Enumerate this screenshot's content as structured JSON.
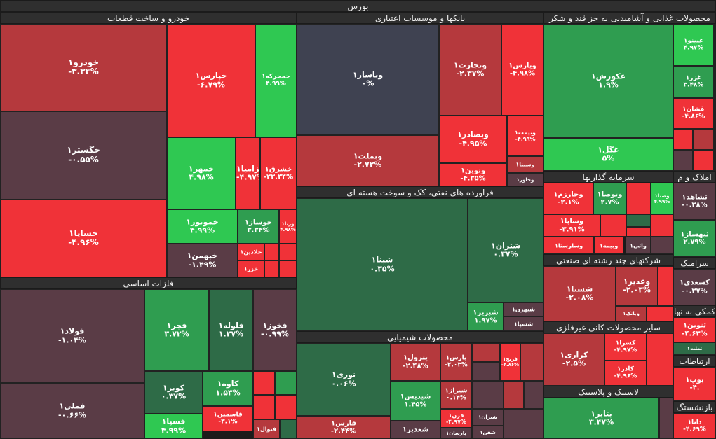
{
  "title": "بورس",
  "chart_data": {
    "type": "treemap",
    "unit": "%",
    "colors": {
      "strong_green": "#2fc852",
      "green": "#2f9d50",
      "dark_green": "#2e6b47",
      "neutral": "#3f4251",
      "dark_red": "#5a3c46",
      "red": "#b5393d",
      "strong_red": "#f03238"
    },
    "sectors": [
      {
        "name": "خودرو و ساخت قطعات"
      },
      {
        "name": "بانکها و موسسات اعتباری"
      },
      {
        "name": "محصولات غذایی و آشامیدنی به جز قند و شکر"
      },
      {
        "name": "فلزات اساسی"
      },
      {
        "name": "فراورده های نفتی، کک و سوخت هسته ای"
      },
      {
        "name": "سرمایه گذاریها"
      },
      {
        "name": "املاک و م"
      },
      {
        "name": "شرکتهای چند رشته ای صنعتی"
      },
      {
        "name": "سرامیک"
      },
      {
        "name": "محصولات شیمیایی"
      },
      {
        "name": "سایر محصولات کانی غیرفلزی"
      },
      {
        "name": "کمکی به نها"
      },
      {
        "name": "ارتباطات"
      },
      {
        "name": "لاستیک و پلاستیک"
      },
      {
        "name": "بازنشستگ"
      }
    ],
    "tiles": [
      {
        "name": "خودرو۱",
        "pct": "-۳.۳۴%",
        "value": -3.34,
        "sector": "خودرو و ساخت قطعات"
      },
      {
        "name": "خگستر۱",
        "pct": "-۰.۵۵%",
        "value": -0.55,
        "sector": "خودرو و ساخت قطعات"
      },
      {
        "name": "خساپا۱",
        "pct": "-۴.۹۶%",
        "value": -4.96,
        "sector": "خودرو و ساخت قطعات"
      },
      {
        "name": "خپارس۱",
        "pct": "-۶.۷۹%",
        "value": -6.79,
        "sector": "خودرو و ساخت قطعات"
      },
      {
        "name": "خمحرکه۱",
        "pct": "۴.۹۹%",
        "value": 4.99,
        "sector": "خودرو و ساخت قطعات"
      },
      {
        "name": "خمهر۱",
        "pct": "۴.۹۸%",
        "value": 4.98,
        "sector": "خودرو و ساخت قطعات"
      },
      {
        "name": "خزامیا۱",
        "pct": "-۴.۹۷%",
        "value": -4.97,
        "sector": "خودرو و ساخت قطعات"
      },
      {
        "name": "خشرق۱",
        "pct": "-۲۳.۳۴%",
        "value": -23.34,
        "sector": "خودرو و ساخت قطعات"
      },
      {
        "name": "خموتور۱",
        "pct": "۴.۹۹%",
        "value": 4.99,
        "sector": "خودرو و ساخت قطعات"
      },
      {
        "name": "خوساز۱",
        "pct": "۳.۳۴%",
        "value": 3.34,
        "sector": "خودرو و ساخت قطعات"
      },
      {
        "name": "ورنا۱",
        "pct": "۴.۹۸%",
        "value": 4.98,
        "sector": "خودرو و ساخت قطعات"
      },
      {
        "name": "خبهمن۱",
        "pct": "-۱.۴۹%",
        "value": -1.49,
        "sector": "خودرو و ساخت قطعات"
      },
      {
        "name": "خلاذین۱",
        "sector": "خودرو و ساخت قطعات"
      },
      {
        "name": "خزر۱",
        "sector": "خودرو و ساخت قطعات"
      },
      {
        "name": "وپاسار۱",
        "pct": "۰%",
        "value": 0,
        "sector": "بانکها و موسسات اعتباری"
      },
      {
        "name": "وتجارت۱",
        "pct": "-۲.۳۷%",
        "value": -2.37,
        "sector": "بانکها و موسسات اعتباری"
      },
      {
        "name": "وپارس۱",
        "pct": "-۴.۹۸%",
        "value": -4.98,
        "sector": "بانکها و موسسات اعتباری"
      },
      {
        "name": "وبصادر۱",
        "pct": "-۴.۹۵%",
        "value": -4.95,
        "sector": "بانکها و موسسات اعتباری"
      },
      {
        "name": "وبیمت۱",
        "pct": "-۴.۹۹%",
        "value": -4.99,
        "sector": "بانکها و موسسات اعتباری"
      },
      {
        "name": "وبملت۱",
        "pct": "-۲.۷۲%",
        "value": -2.72,
        "sector": "بانکها و موسسات اعتباری"
      },
      {
        "name": "ونوین۱",
        "pct": "-۴.۳۵%",
        "value": -4.35,
        "sector": "بانکها و موسسات اعتباری"
      },
      {
        "name": "وسینا۱",
        "sector": "بانکها و موسسات اعتباری"
      },
      {
        "name": "وخاور۱",
        "sector": "بانکها و موسسات اعتباری"
      },
      {
        "name": "غکورش۱",
        "pct": "۱.۹%",
        "value": 1.9,
        "sector": "محصولات غذایی و آشامیدنی به جز قند و شکر"
      },
      {
        "name": "غگل۱",
        "pct": "۵%",
        "value": 5,
        "sector": "محصولات غذایی و آشامیدنی به جز قند و شکر"
      },
      {
        "name": "غبینو۱",
        "pct": "۴.۹۷%",
        "value": 4.97,
        "sector": "محصولات غذایی و آشامیدنی به جز قند و شکر"
      },
      {
        "name": "غزر۱",
        "pct": "۳.۴۸%",
        "value": 3.48,
        "sector": "محصولات غذایی و آشامیدنی به جز قند و شکر"
      },
      {
        "name": "غشان۱",
        "pct": "-۴.۸۶%",
        "value": -4.86,
        "sector": "محصولات غذایی و آشامیدنی به جز قند و شکر"
      },
      {
        "name": "فولاد۱",
        "pct": "-۱.۰۴%",
        "value": -1.04,
        "sector": "فلزات اساسی"
      },
      {
        "name": "فملی۱",
        "pct": "-۰.۶۶%",
        "value": -0.66,
        "sector": "فلزات اساسی"
      },
      {
        "name": "فجر۱",
        "pct": "۳.۷۲%",
        "value": 3.72,
        "sector": "فلزات اساسی"
      },
      {
        "name": "فلوله۱",
        "pct": "۱.۲۷%",
        "value": 1.27,
        "sector": "فلزات اساسی"
      },
      {
        "name": "فخوز۱",
        "pct": "-۰.۹۹%",
        "value": -0.99,
        "sector": "فلزات اساسی"
      },
      {
        "name": "کویر۱",
        "pct": "۰.۳۷%",
        "value": 0.37,
        "sector": "فلزات اساسی"
      },
      {
        "name": "کاوه۱",
        "pct": "۱.۵۳%",
        "value": 1.53,
        "sector": "فلزات اساسی"
      },
      {
        "name": "فاسمین۱",
        "pct": "-۳.۱%",
        "value": -3.1,
        "sector": "فلزات اساسی"
      },
      {
        "name": "فسپا۱",
        "pct": "۴.۹۹%",
        "value": 4.99,
        "sector": "فلزات اساسی"
      },
      {
        "name": "فنوال۱",
        "sector": "فلزات اساسی"
      },
      {
        "name": "شپنا۱",
        "pct": "۰.۳۵%",
        "value": 0.35,
        "sector": "فراورده های نفتی، کک و سوخت هسته ای"
      },
      {
        "name": "شتران۱",
        "pct": "۰.۳۷%",
        "value": 0.37,
        "sector": "فراورده های نفتی، کک و سوخت هسته ای"
      },
      {
        "name": "شبریز۱",
        "pct": "۱.۹۷%",
        "value": 1.97,
        "sector": "فراورده های نفتی، کک و سوخت هسته ای"
      },
      {
        "name": "شبهرن۱",
        "sector": "فراورده های نفتی، کک و سوخت هسته ای"
      },
      {
        "name": "شسپا۱",
        "sector": "فراورده های نفتی، کک و سوخت هسته ای"
      },
      {
        "name": "وخارزم۱",
        "pct": "-۲.۱%",
        "value": -2.1,
        "sector": "سرمایه گذاریها"
      },
      {
        "name": "وتوصا۱",
        "pct": "۲.۷%",
        "value": 2.7,
        "sector": "سرمایه گذاریها"
      },
      {
        "name": "وصنا۱",
        "pct": "۴.۹۹%",
        "value": 4.99,
        "sector": "سرمایه گذاریها"
      },
      {
        "name": "وساپا۱",
        "pct": "-۳.۹۱%",
        "value": -3.91,
        "sector": "سرمایه گذاریها"
      },
      {
        "name": "وسلرستا۱",
        "sector": "سرمایه گذاریها"
      },
      {
        "name": "وبیمه۱",
        "sector": "سرمایه گذاریها"
      },
      {
        "name": "واتی۱",
        "sector": "سرمایه گذاریها"
      },
      {
        "name": "ثشاهد۱",
        "pct": "-۰.۲۸%",
        "value": -0.28,
        "sector": "املاک و م"
      },
      {
        "name": "ثبهساز۱",
        "pct": "۲.۷۹%",
        "value": 2.79,
        "sector": "املاک و م"
      },
      {
        "name": "شستا۱",
        "pct": "-۲.۰۸%",
        "value": -2.08,
        "sector": "شرکتهای چند رشته ای صنعتی"
      },
      {
        "name": "وغدیر۱",
        "pct": "-۲.۰۳%",
        "value": -2.03,
        "sector": "شرکتهای چند رشته ای صنعتی"
      },
      {
        "name": "وبانک۱",
        "sector": "شرکتهای چند رشته ای صنعتی"
      },
      {
        "name": "کسعدی۱",
        "pct": "-۰.۳۷%",
        "value": -0.37,
        "sector": "سرامیک"
      },
      {
        "name": "نوری۱",
        "pct": "۰.۰۶%",
        "value": 0.06,
        "sector": "محصولات شیمیایی"
      },
      {
        "name": "فارس۱",
        "pct": "-۲.۴۴%",
        "value": -2.44,
        "sector": "محصولات شیمیایی"
      },
      {
        "name": "پترول۱",
        "pct": "-۲.۴۸%",
        "value": -2.48,
        "sector": "محصولات شیمیایی"
      },
      {
        "name": "پارس۱",
        "pct": "-۲.۰۳%",
        "value": -2.03,
        "sector": "محصولات شیمیایی"
      },
      {
        "name": "فریخ۱",
        "pct": "-۴.۸۶%",
        "value": -4.86,
        "sector": "محصولات شیمیایی"
      },
      {
        "name": "شپدیس۱",
        "pct": "۱.۴۵%",
        "value": 1.45,
        "sector": "محصولات شیمیایی"
      },
      {
        "name": "شیراز۱",
        "pct": "۰.۱۴%",
        "value": 0.14,
        "sector": "محصولات شیمیایی"
      },
      {
        "name": "قرن۱",
        "pct": "-۴.۹۷%",
        "value": -4.97,
        "sector": "محصولات شیمیایی"
      },
      {
        "name": "شغدیر۱",
        "sector": "محصولات شیمیایی"
      },
      {
        "name": "شیران۱",
        "sector": "محصولات شیمیایی"
      },
      {
        "name": "شفن۱",
        "sector": "محصولات شیمیایی"
      },
      {
        "name": "پارسان۱",
        "sector": "محصولات شیمیایی"
      },
      {
        "name": "کرازی۱",
        "pct": "-۲.۵%",
        "value": -2.5,
        "sector": "سایر محصولات کانی غیرفلزی"
      },
      {
        "name": "کسرا۱",
        "pct": "-۴.۹۷%",
        "value": -4.97,
        "sector": "سایر محصولات کانی غیرفلزی"
      },
      {
        "name": "کاذر۱",
        "pct": "-۴.۹۶%",
        "value": -4.96,
        "sector": "سایر محصولات کانی غیرفلزی"
      },
      {
        "name": "تنوین۱",
        "pct": "-۴.۶۳%",
        "value": -4.63,
        "sector": "کمکی به نها"
      },
      {
        "name": "تملت۱",
        "sector": "کمکی به نها"
      },
      {
        "name": "بوپ۱",
        "pct": "-۴.",
        "sector": "ارتباطات"
      },
      {
        "name": "پتایر۱",
        "pct": "۳.۴۷%",
        "value": 3.47,
        "sector": "لاستیک و پلاستیک"
      },
      {
        "name": "دانا۱",
        "pct": "-۴.۶۹%",
        "value": -4.69,
        "sector": "بازنشستگ"
      }
    ]
  }
}
